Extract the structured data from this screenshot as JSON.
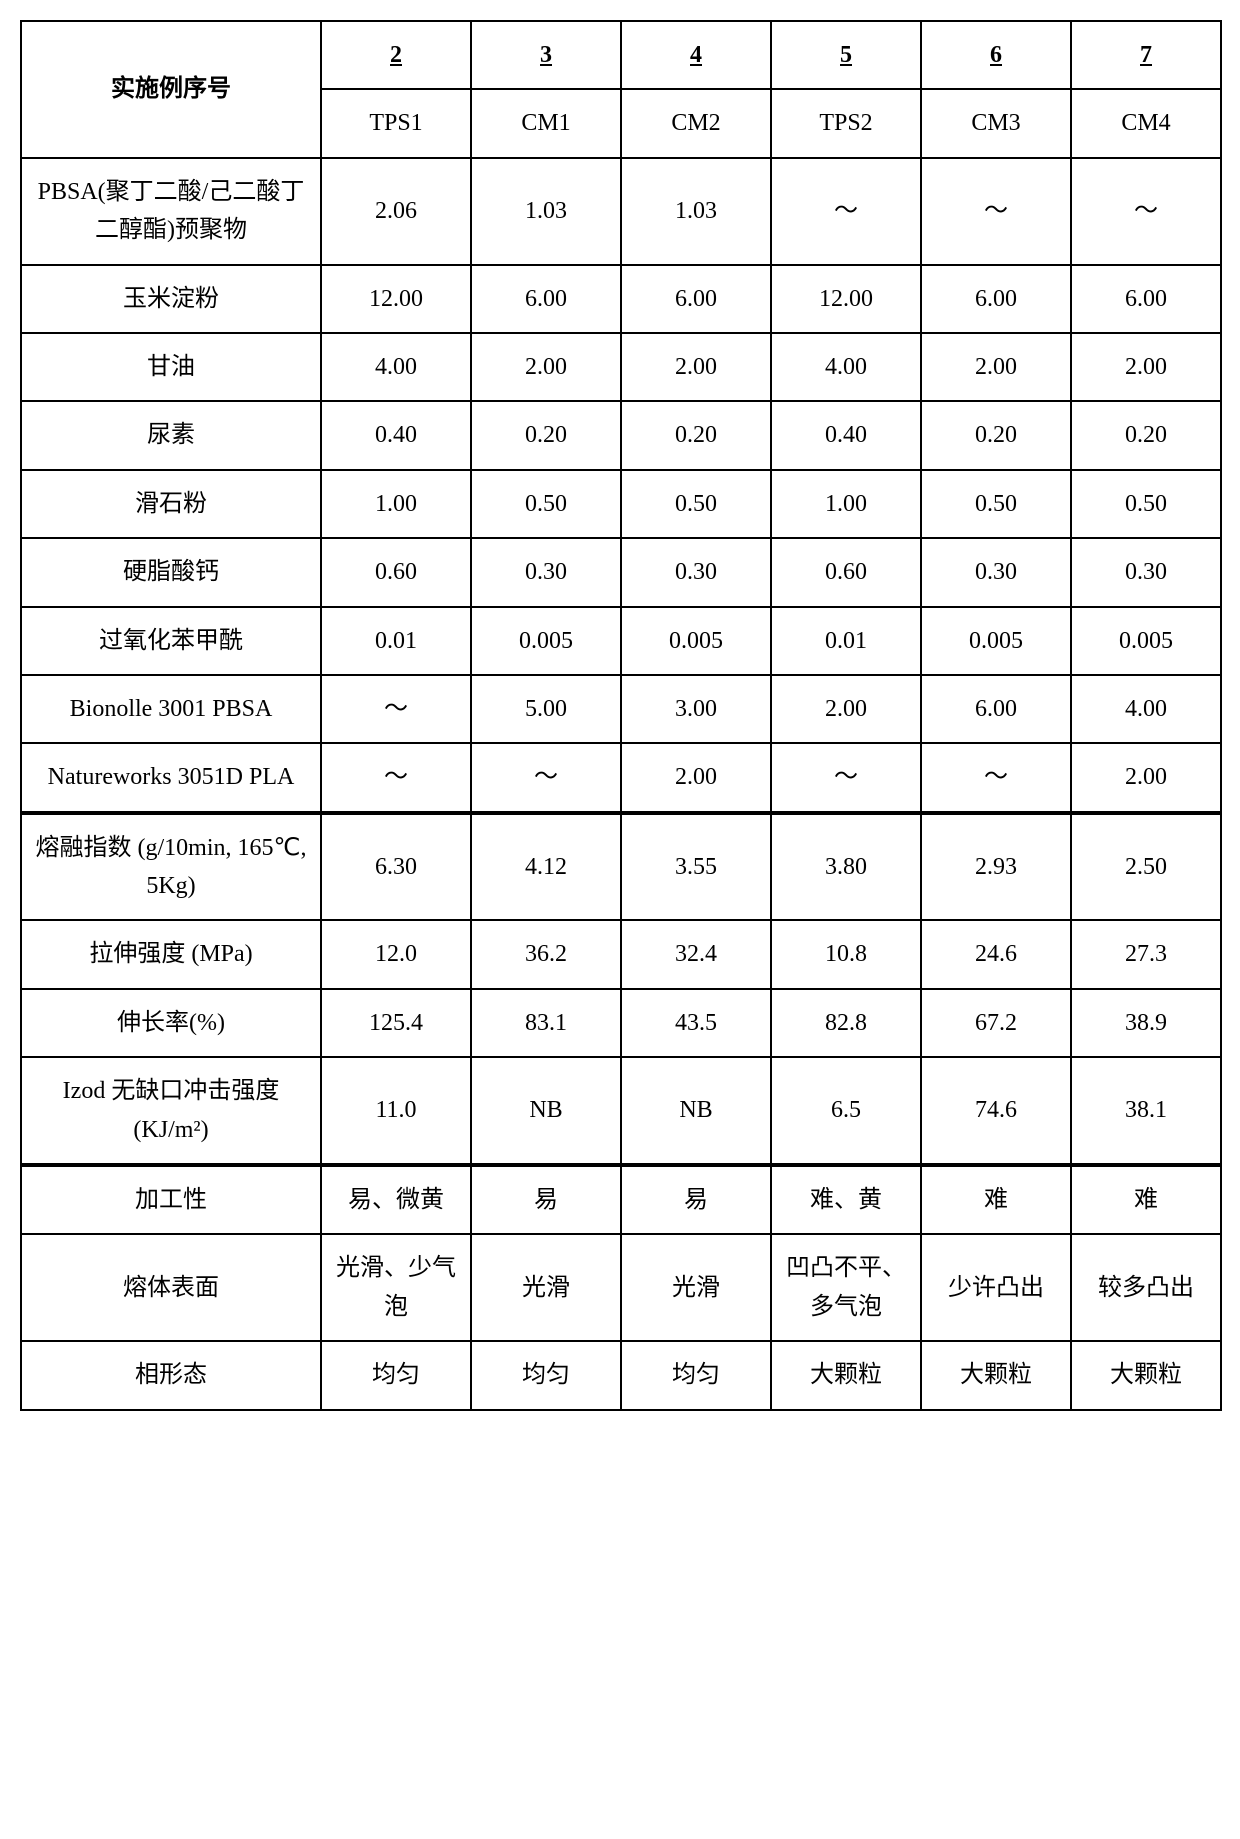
{
  "header": {
    "rowLabel": "实施例序号",
    "nums": [
      "2",
      "3",
      "4",
      "5",
      "6",
      "7"
    ],
    "codes": [
      "TPS1",
      "CM1",
      "CM2",
      "TPS2",
      "CM3",
      "CM4"
    ]
  },
  "sections": [
    {
      "rows": [
        {
          "label": "PBSA(聚丁二酸/己二酸丁二醇酯)预聚物",
          "cells": [
            "2.06",
            "1.03",
            "1.03",
            "～",
            "～",
            "～"
          ]
        },
        {
          "label": "玉米淀粉",
          "cells": [
            "12.00",
            "6.00",
            "6.00",
            "12.00",
            "6.00",
            "6.00"
          ]
        },
        {
          "label": "甘油",
          "cells": [
            "4.00",
            "2.00",
            "2.00",
            "4.00",
            "2.00",
            "2.00"
          ]
        },
        {
          "label": "尿素",
          "cells": [
            "0.40",
            "0.20",
            "0.20",
            "0.40",
            "0.20",
            "0.20"
          ]
        },
        {
          "label": "滑石粉",
          "cells": [
            "1.00",
            "0.50",
            "0.50",
            "1.00",
            "0.50",
            "0.50"
          ]
        },
        {
          "label": "硬脂酸钙",
          "cells": [
            "0.60",
            "0.30",
            "0.30",
            "0.60",
            "0.30",
            "0.30"
          ]
        },
        {
          "label": "过氧化苯甲酰",
          "cells": [
            "0.01",
            "0.005",
            "0.005",
            "0.01",
            "0.005",
            "0.005"
          ]
        },
        {
          "label": "Bionolle 3001 PBSA",
          "cells": [
            "～",
            "5.00",
            "3.00",
            "2.00",
            "6.00",
            "4.00"
          ]
        },
        {
          "label": "Natureworks 3051D PLA",
          "cells": [
            "～",
            "～",
            "2.00",
            "～",
            "～",
            "2.00"
          ]
        }
      ]
    },
    {
      "rows": [
        {
          "label": "熔融指数 (g/10min, 165℃, 5Kg)",
          "cells": [
            "6.30",
            "4.12",
            "3.55",
            "3.80",
            "2.93",
            "2.50"
          ]
        },
        {
          "label": "拉伸强度 (MPa)",
          "cells": [
            "12.0",
            "36.2",
            "32.4",
            "10.8",
            "24.6",
            "27.3"
          ]
        },
        {
          "label": "伸长率(%)",
          "cells": [
            "125.4",
            "83.1",
            "43.5",
            "82.8",
            "67.2",
            "38.9"
          ]
        },
        {
          "label": "Izod 无缺口冲击强度(KJ/m²)",
          "cells": [
            "11.0",
            "NB",
            "NB",
            "6.5",
            "74.6",
            "38.1"
          ]
        }
      ]
    },
    {
      "rows": [
        {
          "label": "加工性",
          "cells": [
            "易、微黄",
            "易",
            "易",
            "难、黄",
            "难",
            "难"
          ]
        },
        {
          "label": "熔体表面",
          "cells": [
            "光滑、少气泡",
            "光滑",
            "光滑",
            "凹凸不平、多气泡",
            "少许凸出",
            "较多凸出"
          ]
        },
        {
          "label": "相形态",
          "cells": [
            "均匀",
            "均匀",
            "均匀",
            "大颗粒",
            "大颗粒",
            "大颗粒"
          ]
        }
      ]
    }
  ]
}
